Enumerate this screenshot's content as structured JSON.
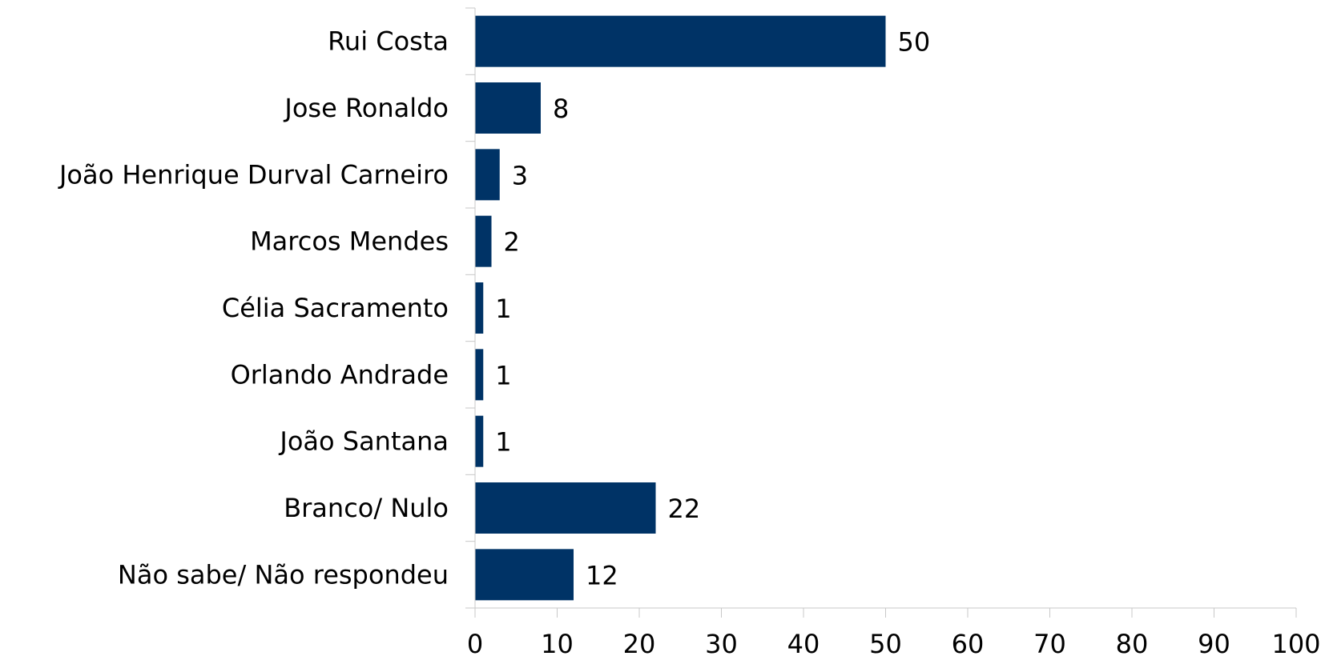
{
  "chart_data": {
    "type": "bar",
    "orientation": "horizontal",
    "categories": [
      "Rui Costa",
      "Jose Ronaldo",
      "João Henrique Durval Carneiro",
      "Marcos Mendes",
      "Célia Sacramento",
      "Orlando Andrade",
      "João Santana",
      "Branco/ Nulo",
      "Não sabe/ Não respondeu"
    ],
    "values": [
      50,
      8,
      3,
      2,
      1,
      1,
      1,
      22,
      12
    ],
    "value_labels": [
      "50",
      "8",
      "3",
      "2",
      "1",
      "1",
      "1",
      "22",
      "12"
    ],
    "xlim": [
      0,
      100
    ],
    "xticks": [
      0,
      10,
      20,
      30,
      40,
      50,
      60,
      70,
      80,
      90,
      100
    ],
    "xtick_labels": [
      "0",
      "10",
      "20",
      "30",
      "40",
      "50",
      "60",
      "70",
      "80",
      "90",
      "100"
    ],
    "title": "",
    "xlabel": "",
    "ylabel": "",
    "grid": false,
    "legend": "none",
    "bar_color": "#003366"
  }
}
